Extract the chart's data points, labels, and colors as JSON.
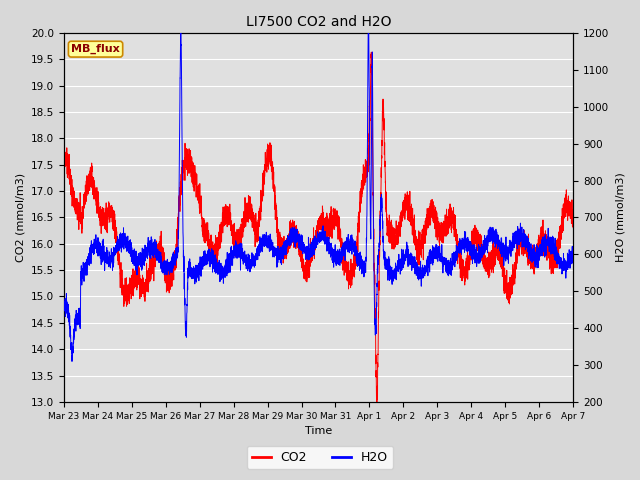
{
  "title": "LI7500 CO2 and H2O",
  "xlabel": "Time",
  "ylabel_left": "CO2 (mmol/m3)",
  "ylabel_right": "H2O (mmol/m3)",
  "co2_ylim": [
    13.0,
    20.0
  ],
  "h2o_ylim": [
    200,
    1200
  ],
  "co2_yticks": [
    13.0,
    13.5,
    14.0,
    14.5,
    15.0,
    15.5,
    16.0,
    16.5,
    17.0,
    17.5,
    18.0,
    18.5,
    19.0,
    19.5,
    20.0
  ],
  "h2o_yticks": [
    200,
    300,
    400,
    500,
    600,
    700,
    800,
    900,
    1000,
    1100,
    1200
  ],
  "co2_color": "#FF0000",
  "h2o_color": "#0000FF",
  "background_color": "#D8D8D8",
  "plot_bg_color": "#E0E0E0",
  "grid_color": "#FFFFFF",
  "legend_label": "MB_flux",
  "legend_box_color": "#FFFF99",
  "legend_box_edge": "#CC8800",
  "x_tick_labels": [
    "Mar 23",
    "Mar 24",
    "Mar 25",
    "Mar 26",
    "Mar 27",
    "Mar 28",
    "Mar 29",
    "Mar 30",
    "Mar 31",
    "Apr 1",
    "Apr 2",
    "Apr 3",
    "Apr 4",
    "Apr 5",
    "Apr 6",
    "Apr 7"
  ],
  "num_points": 5000,
  "seed": 99
}
